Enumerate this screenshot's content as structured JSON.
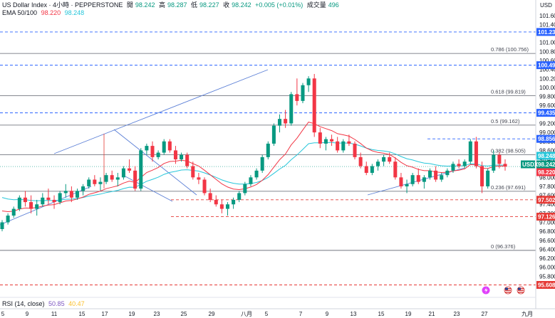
{
  "header": {
    "symbol": "US Dollar Index · 4小時 · PEPPERSTONE",
    "open_label": "開",
    "open": "98.242",
    "high_label": "高",
    "high": "98.287",
    "low_label": "低",
    "low": "98.227",
    "close_label": "收",
    "close": "98.242",
    "change": "+0.005 (+0.01%)",
    "volume_label": "成交量",
    "volume": "496"
  },
  "ema": {
    "label": "EMA 50/100",
    "v1": "98.220",
    "v2": "98.248"
  },
  "rsi": {
    "label": "RSI (14, close)",
    "v1": "50.85",
    "v2": "40.47"
  },
  "axis": {
    "currency": "USD"
  },
  "colors": {
    "up": "#089981",
    "down": "#f23645",
    "ema_fast": "#f23645",
    "ema_slow": "#26c6da",
    "trendline": "#5b7fd6",
    "level_blue": "#2962ff",
    "level_red": "#e53935",
    "fib": "#787b86"
  },
  "chart_data": {
    "type": "candlestick",
    "y_ticks": [
      "101.800",
      "101.600",
      "101.400",
      "101.200",
      "101.000",
      "100.800",
      "100.600",
      "100.400",
      "100.200",
      "100.000",
      "99.800",
      "99.600",
      "99.400",
      "99.200",
      "99.000",
      "98.800",
      "98.600",
      "98.400",
      "98.200",
      "98.000",
      "97.800",
      "97.600",
      "97.400",
      "97.200",
      "97.000",
      "96.800",
      "96.600",
      "96.400",
      "96.200",
      "96.000",
      "95.800",
      "95.600"
    ],
    "x_ticks": [
      "5",
      "9",
      "11",
      "15",
      "17",
      "19",
      "23",
      "25",
      "29",
      "八月",
      "5",
      "7",
      "9",
      "13",
      "15",
      "19",
      "21",
      "23",
      "27",
      "九月"
    ],
    "x_tick_dates": [
      "2025-07-05",
      "2025-07-09",
      "2025-07-11",
      "2025-07-15",
      "2025-07-17",
      "2025-07-19",
      "2025-07-23",
      "2025-07-25",
      "2025-07-29",
      "2025-08-01",
      "2025-08-05",
      "2025-08-07",
      "2025-08-09",
      "2025-08-13",
      "2025-08-15",
      "2025-08-19",
      "2025-08-21",
      "2025-08-23",
      "2025-08-27",
      "2025-09-01"
    ],
    "y_range": [
      95.6,
      101.85
    ],
    "fib_levels": [
      {
        "label": "0.786 (100.756)",
        "value": 100.756
      },
      {
        "label": "0.618 (99.819)",
        "value": 99.819
      },
      {
        "label": "0.5 (99.162)",
        "value": 99.162
      },
      {
        "label": "0.382 (98.505)",
        "value": 98.505
      },
      {
        "label": "0.236 (97.691)",
        "value": 97.691
      },
      {
        "label": "0 (96.376)",
        "value": 96.376
      }
    ],
    "blue_levels": [
      {
        "label": "101.234",
        "value": 101.234
      },
      {
        "label": "100.495",
        "value": 100.495
      },
      {
        "label": "99.435",
        "value": 99.435
      },
      {
        "label": "98.856",
        "value": 98.856
      }
    ],
    "red_levels": [
      {
        "label": "97.502",
        "value": 97.502
      },
      {
        "label": "97.126",
        "value": 97.126
      },
      {
        "label": "95.608",
        "value": 95.608
      }
    ],
    "price_badges": [
      {
        "label": "USDX",
        "value": "98.242",
        "color": "#089981"
      },
      {
        "label": "",
        "value": "98.248",
        "color": "#26c6da"
      },
      {
        "label": "",
        "value": "98.220",
        "color": "#f23645"
      }
    ],
    "candles_approx": [
      [
        96.85,
        97.05,
        96.8,
        97.0
      ],
      [
        97.0,
        97.2,
        96.95,
        97.15
      ],
      [
        97.15,
        97.35,
        97.1,
        97.3
      ],
      [
        97.3,
        97.6,
        97.25,
        97.55
      ],
      [
        97.55,
        97.7,
        97.35,
        97.45
      ],
      [
        97.45,
        97.6,
        97.2,
        97.3
      ],
      [
        97.3,
        97.5,
        97.15,
        97.4
      ],
      [
        97.4,
        97.65,
        97.35,
        97.55
      ],
      [
        97.55,
        97.75,
        97.4,
        97.5
      ],
      [
        97.5,
        97.6,
        97.3,
        97.45
      ],
      [
        97.45,
        97.7,
        97.4,
        97.65
      ],
      [
        97.65,
        97.85,
        97.55,
        97.7
      ],
      [
        97.7,
        97.8,
        97.45,
        97.55
      ],
      [
        97.55,
        97.75,
        97.5,
        97.7
      ],
      [
        97.7,
        97.85,
        97.6,
        97.8
      ],
      [
        97.8,
        98.0,
        97.75,
        97.95
      ],
      [
        97.95,
        98.05,
        97.8,
        97.85
      ],
      [
        97.85,
        98.0,
        97.7,
        97.9
      ],
      [
        97.9,
        98.1,
        97.85,
        98.05
      ],
      [
        98.05,
        98.15,
        97.9,
        97.95
      ],
      [
        97.95,
        98.1,
        97.8,
        98.0
      ],
      [
        98.0,
        98.25,
        97.95,
        98.2
      ],
      [
        98.2,
        98.4,
        98.1,
        98.15
      ],
      [
        98.15,
        98.25,
        97.7,
        97.75
      ],
      [
        97.75,
        98.65,
        97.7,
        98.6
      ],
      [
        98.6,
        98.75,
        98.5,
        98.7
      ],
      [
        98.7,
        98.8,
        98.35,
        98.45
      ],
      [
        98.45,
        98.6,
        98.4,
        98.55
      ],
      [
        98.55,
        98.85,
        98.5,
        98.8
      ],
      [
        98.8,
        98.85,
        98.55,
        98.6
      ],
      [
        98.6,
        98.7,
        98.3,
        98.4
      ],
      [
        98.4,
        98.55,
        98.35,
        98.5
      ],
      [
        98.5,
        98.55,
        98.2,
        98.25
      ],
      [
        98.25,
        98.35,
        97.95,
        98.0
      ],
      [
        98.0,
        98.1,
        97.85,
        97.95
      ],
      [
        97.95,
        98.0,
        97.6,
        97.65
      ],
      [
        97.65,
        97.75,
        97.45,
        97.5
      ],
      [
        97.5,
        97.6,
        97.35,
        97.4
      ],
      [
        97.4,
        97.5,
        97.2,
        97.3
      ],
      [
        97.3,
        97.45,
        97.15,
        97.4
      ],
      [
        97.4,
        97.55,
        97.3,
        97.5
      ],
      [
        97.5,
        97.7,
        97.45,
        97.65
      ],
      [
        97.65,
        97.9,
        97.6,
        97.85
      ],
      [
        97.85,
        98.05,
        97.8,
        98.0
      ],
      [
        98.0,
        98.2,
        97.95,
        98.15
      ],
      [
        98.15,
        98.5,
        98.1,
        98.45
      ],
      [
        98.45,
        98.8,
        98.4,
        98.75
      ],
      [
        98.75,
        99.2,
        98.7,
        99.15
      ],
      [
        99.15,
        99.4,
        99.0,
        99.3
      ],
      [
        99.3,
        99.5,
        99.1,
        99.2
      ],
      [
        99.2,
        99.9,
        99.15,
        99.85
      ],
      [
        99.85,
        100.2,
        99.6,
        99.7
      ],
      [
        99.7,
        100.1,
        99.65,
        100.05
      ],
      [
        100.05,
        100.25,
        99.9,
        100.2
      ],
      [
        100.2,
        100.3,
        98.9,
        99.0
      ],
      [
        99.0,
        99.1,
        98.65,
        98.75
      ],
      [
        98.75,
        98.9,
        98.6,
        98.85
      ],
      [
        98.85,
        98.95,
        98.7,
        98.8
      ],
      [
        98.8,
        98.9,
        98.55,
        98.6
      ],
      [
        98.6,
        98.85,
        98.55,
        98.8
      ],
      [
        98.8,
        98.95,
        98.7,
        98.75
      ],
      [
        98.75,
        98.8,
        98.4,
        98.45
      ],
      [
        98.45,
        98.55,
        98.2,
        98.25
      ],
      [
        98.25,
        98.35,
        98.05,
        98.1
      ],
      [
        98.1,
        98.3,
        98.05,
        98.25
      ],
      [
        98.25,
        98.4,
        98.15,
        98.35
      ],
      [
        98.35,
        98.5,
        98.25,
        98.45
      ],
      [
        98.45,
        98.55,
        98.3,
        98.35
      ],
      [
        98.35,
        98.45,
        97.95,
        98.0
      ],
      [
        98.0,
        98.1,
        97.75,
        97.8
      ],
      [
        97.8,
        97.95,
        97.65,
        97.85
      ],
      [
        97.85,
        98.1,
        97.8,
        98.05
      ],
      [
        98.05,
        98.2,
        97.85,
        97.9
      ],
      [
        97.9,
        98.05,
        97.75,
        98.0
      ],
      [
        98.0,
        98.2,
        97.95,
        98.15
      ],
      [
        98.15,
        98.25,
        97.9,
        97.95
      ],
      [
        97.95,
        98.1,
        97.9,
        98.05
      ],
      [
        98.05,
        98.2,
        98.0,
        98.15
      ],
      [
        98.15,
        98.35,
        98.1,
        98.3
      ],
      [
        98.3,
        98.4,
        98.2,
        98.25
      ],
      [
        98.25,
        98.4,
        98.2,
        98.35
      ],
      [
        98.35,
        98.85,
        98.3,
        98.8
      ],
      [
        98.8,
        98.9,
        98.2,
        98.25
      ],
      [
        98.25,
        98.35,
        97.65,
        97.8
      ],
      [
        97.8,
        98.2,
        97.75,
        98.15
      ],
      [
        98.15,
        98.6,
        98.1,
        98.5
      ],
      [
        98.5,
        98.55,
        98.2,
        98.3
      ],
      [
        98.3,
        98.4,
        98.15,
        98.24
      ]
    ]
  },
  "icons": {
    "flash": "flash-icon",
    "flag1": "us-flag-icon",
    "flag2": "us-flag-icon"
  }
}
